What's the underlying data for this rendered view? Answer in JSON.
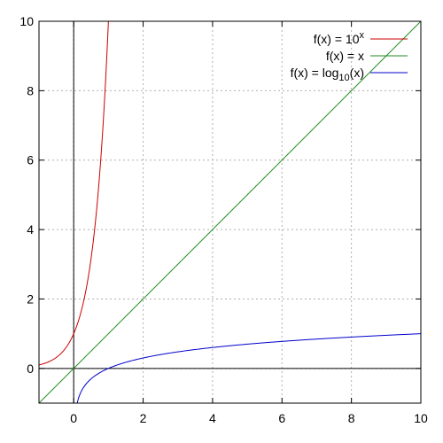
{
  "chart_data": {
    "type": "line",
    "title": "",
    "xlabel": "",
    "ylabel": "",
    "xlim": [
      -1,
      10
    ],
    "ylim": [
      -1,
      10
    ],
    "x_ticks": [
      0,
      2,
      4,
      6,
      8,
      10
    ],
    "y_ticks": [
      0,
      2,
      4,
      6,
      8,
      10
    ],
    "x_tick_labels": [
      "0",
      "2",
      "4",
      "6",
      "8",
      "10"
    ],
    "y_tick_labels": [
      "0",
      "2",
      "4",
      "6",
      "8",
      "10"
    ],
    "grid": true,
    "legend_position": "top-right",
    "series": [
      {
        "name": "f(x) = 10^x",
        "legend_base": "f(x) = 10",
        "legend_super": "x",
        "legend_sub": "",
        "legend_tail": "",
        "color": "#cc0000",
        "function": "pow10",
        "x": [
          -1,
          -0.75,
          -0.5,
          -0.25,
          0,
          0.25,
          0.5,
          0.6,
          0.7,
          0.8,
          0.9,
          0.95,
          1.0
        ],
        "y": [
          0.1,
          0.18,
          0.32,
          0.56,
          1.0,
          1.78,
          3.16,
          3.98,
          5.01,
          6.31,
          7.94,
          8.91,
          10.0
        ]
      },
      {
        "name": "f(x) = x",
        "legend_base": "f(x) = x",
        "legend_super": "",
        "legend_sub": "",
        "legend_tail": "",
        "color": "#228b22",
        "function": "identity",
        "x": [
          -1,
          0,
          2,
          4,
          6,
          8,
          10
        ],
        "y": [
          -1,
          0,
          2,
          4,
          6,
          8,
          10
        ]
      },
      {
        "name": "f(x) = log10(x)",
        "legend_base": "f(x) = log",
        "legend_super": "",
        "legend_sub": "10",
        "legend_tail": "(x)",
        "color": "#0000cc",
        "function": "log10",
        "x": [
          0.1,
          0.2,
          0.3,
          0.5,
          1,
          2,
          3,
          4,
          5,
          6,
          7,
          8,
          9,
          10
        ],
        "y": [
          -1.0,
          -0.7,
          -0.52,
          -0.3,
          0,
          0.3,
          0.48,
          0.6,
          0.7,
          0.78,
          0.85,
          0.9,
          0.95,
          1.0
        ]
      }
    ]
  }
}
